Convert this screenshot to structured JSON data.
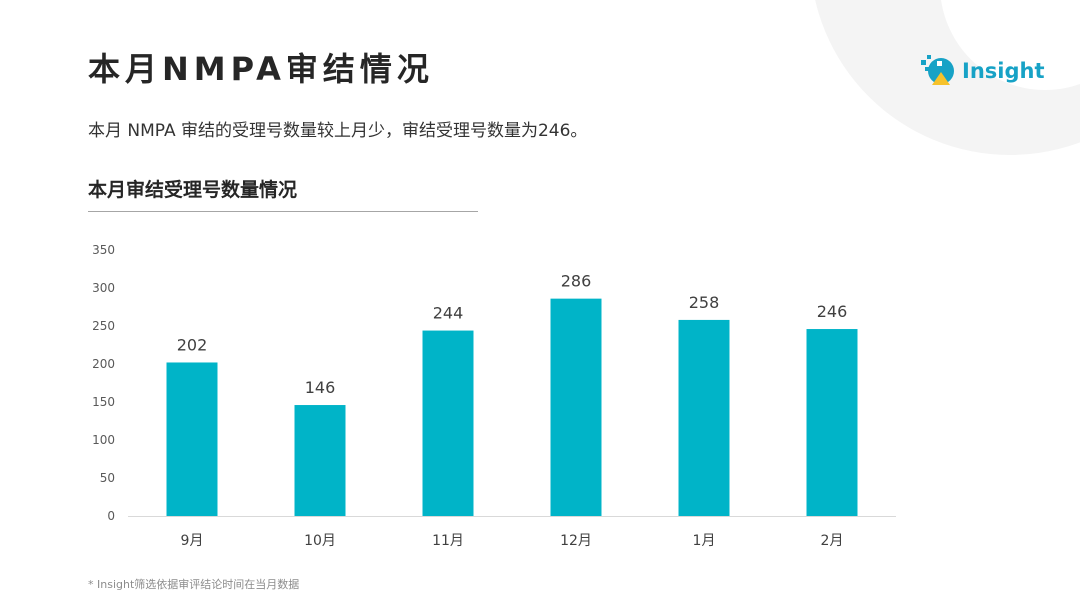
{
  "title": "本月NMPA审结情况",
  "logo": {
    "icon": "insight-logo-icon",
    "text": "Insight",
    "color": "#17a2c6",
    "accent_color": "#f6c22b"
  },
  "summary": "本月 NMPA 审结的受理号数量较上月少，审结受理号数量为246。",
  "footnote": "* Insight筛选依据审评结论时间在当月数据",
  "chart_data": {
    "type": "bar",
    "title": "本月审结受理号数量情况",
    "categories": [
      "9月",
      "10月",
      "11月",
      "12月",
      "1月",
      "2月"
    ],
    "values": [
      202,
      146,
      244,
      286,
      258,
      246
    ],
    "ylim": [
      0,
      350
    ],
    "yticks": [
      0,
      50,
      100,
      150,
      200,
      250,
      300,
      350
    ],
    "xlabel": "",
    "ylabel": "",
    "grid": false,
    "data_labels": true,
    "bar_color": "#00b4c8"
  }
}
